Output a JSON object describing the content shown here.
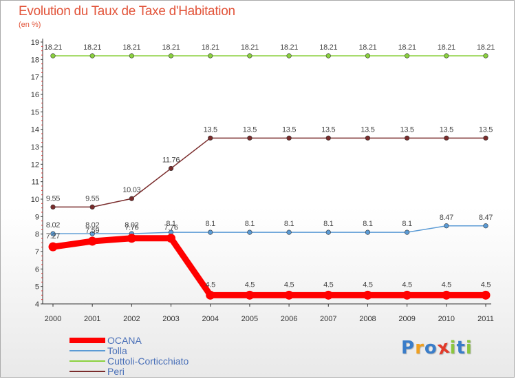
{
  "chart_data": {
    "type": "line",
    "title": "Evolution du Taux de Taxe d'Habitation",
    "subtitle": "(en %)",
    "x": [
      "2000",
      "2001",
      "2002",
      "2003",
      "2004",
      "2005",
      "2006",
      "2007",
      "2008",
      "2009",
      "2010",
      "2011"
    ],
    "ylim": [
      4,
      19
    ],
    "yticks": [
      4,
      5,
      6,
      7,
      8,
      9,
      10,
      11,
      12,
      13,
      14,
      15,
      16,
      17,
      18,
      19
    ],
    "grid": false,
    "legend_position": "bottom-left",
    "series": [
      {
        "name": "OCANA",
        "color": "#ff0000",
        "values": [
          7.27,
          7.59,
          7.76,
          7.76,
          4.5,
          4.5,
          4.5,
          4.5,
          4.5,
          4.5,
          4.5,
          4.5
        ],
        "labels": [
          "7.27",
          "7.59",
          "7.76",
          "7.76",
          "4.5",
          "4.5",
          "4.5",
          "4.5",
          "4.5",
          "4.5",
          "4.5",
          "4.5"
        ]
      },
      {
        "name": "Tolla",
        "color": "#5b9bd5",
        "values": [
          8.02,
          8.02,
          8.02,
          8.1,
          8.1,
          8.1,
          8.1,
          8.1,
          8.1,
          8.1,
          8.47,
          8.47
        ],
        "labels": [
          "8.02",
          "8.02",
          "8.02",
          "8.1",
          "8.1",
          "8.1",
          "8.1",
          "8.1",
          "8.1",
          "8.1",
          "8.47",
          "8.47"
        ]
      },
      {
        "name": "Cuttoli-Corticchiato",
        "color": "#8bd13f",
        "values": [
          18.21,
          18.21,
          18.21,
          18.21,
          18.21,
          18.21,
          18.21,
          18.21,
          18.21,
          18.21,
          18.21,
          18.21
        ],
        "labels": [
          "18.21",
          "18.21",
          "18.21",
          "18.21",
          "18.21",
          "18.21",
          "18.21",
          "18.21",
          "18.21",
          "18.21",
          "18.21",
          "18.21"
        ]
      },
      {
        "name": "Peri",
        "color": "#7a2c2c",
        "values": [
          9.55,
          9.55,
          10.03,
          11.76,
          13.5,
          13.5,
          13.5,
          13.5,
          13.5,
          13.5,
          13.5,
          13.5
        ],
        "labels": [
          "9.55",
          "9.55",
          "10.03",
          "11.76",
          "13.5",
          "13.5",
          "13.5",
          "13.5",
          "13.5",
          "13.5",
          "13.5",
          "13.5"
        ]
      }
    ]
  },
  "logo": {
    "text": "Proxiti",
    "letters": [
      "P",
      "r",
      "o",
      "x",
      "i",
      "t",
      "i"
    ],
    "colors": [
      "#3a7dc9",
      "#f0a020",
      "#3a7dc9",
      "#e23a2a",
      "#8bc63f",
      "#3a7dc9",
      "#8bc63f"
    ]
  }
}
